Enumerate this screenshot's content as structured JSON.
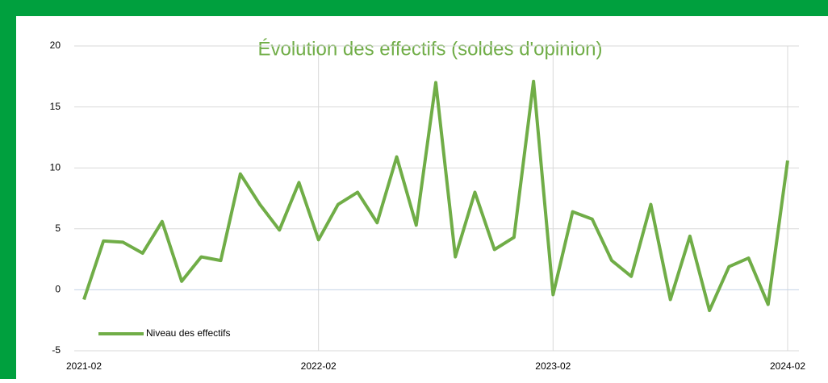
{
  "chart_data": {
    "type": "line",
    "title": "Évolution des effectifs (soldes d'opinion)",
    "categories": [
      "2021-02",
      null,
      null,
      null,
      null,
      null,
      null,
      null,
      null,
      null,
      null,
      null,
      "2022-02",
      null,
      null,
      null,
      null,
      null,
      null,
      null,
      null,
      null,
      null,
      null,
      "2023-02",
      null,
      null,
      null,
      null,
      null,
      null,
      null,
      null,
      null,
      null,
      null,
      "2024-02"
    ],
    "series": [
      {
        "name": "Niveau des effectifs",
        "color": "#70ad47",
        "values": [
          -0.8,
          4.0,
          3.9,
          3.0,
          5.6,
          0.7,
          2.7,
          2.4,
          9.5,
          7.0,
          4.9,
          8.8,
          4.1,
          7.0,
          8.0,
          5.5,
          10.9,
          5.3,
          17.0,
          2.7,
          8.0,
          3.3,
          4.3,
          17.1,
          -0.4,
          6.4,
          5.8,
          2.4,
          1.1,
          7.0,
          -0.8,
          4.4,
          -1.7,
          1.9,
          2.6,
          -1.2,
          10.6
        ]
      }
    ],
    "ylim": [
      -5,
      20
    ],
    "yticks": [
      -5,
      0,
      5,
      10,
      15,
      20
    ],
    "grid": true,
    "legend": "lower left"
  }
}
